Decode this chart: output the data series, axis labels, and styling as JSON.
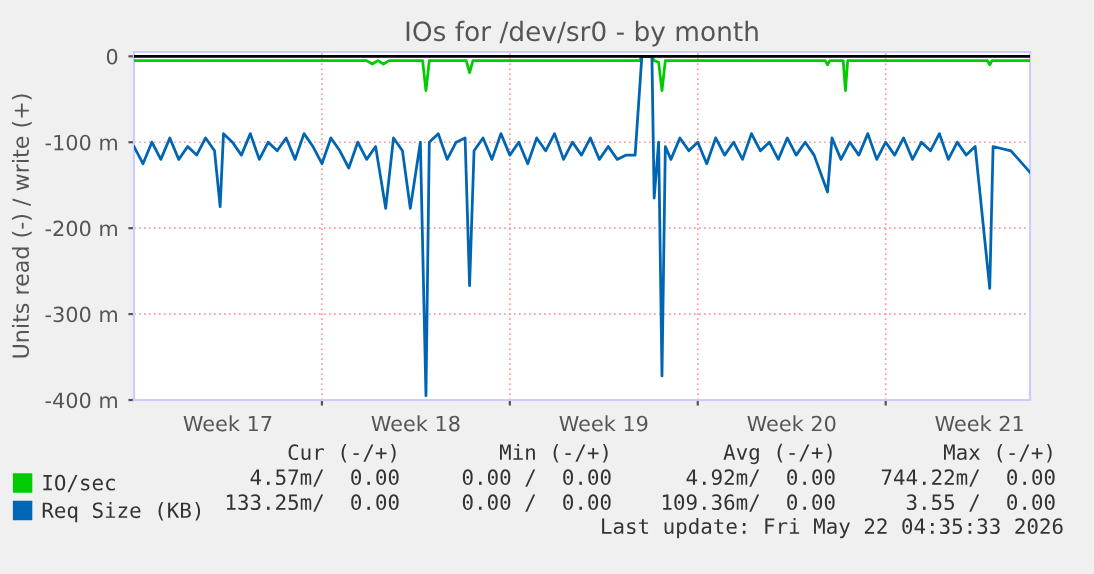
{
  "chart_data": {
    "type": "line",
    "title": "IOs for /dev/sr0 - by month",
    "ylabel": "Units read (-) / write (+)",
    "xlim": [
      "2026-04-20T00:00",
      "2026-05-23T09:00"
    ],
    "xticks": [
      {
        "value": "2026-04-23T12:00",
        "label": "Week 17"
      },
      {
        "value": "2026-04-27",
        "label": null
      },
      {
        "value": "2026-04-30T12:00",
        "label": "Week 18"
      },
      {
        "value": "2026-05-04",
        "label": null
      },
      {
        "value": "2026-05-07T12:00",
        "label": "Week 19"
      },
      {
        "value": "2026-05-11",
        "label": null
      },
      {
        "value": "2026-05-14T12:00",
        "label": "Week 20"
      },
      {
        "value": "2026-05-18",
        "label": null
      },
      {
        "value": "2026-05-21T12:00",
        "label": "Week 21"
      }
    ],
    "ylim": [
      -400,
      5
    ],
    "yticks": [
      {
        "value": -400,
        "label": "-400 m"
      },
      {
        "value": -300,
        "label": "-300 m"
      },
      {
        "value": -200,
        "label": "-200 m"
      },
      {
        "value": -100,
        "label": "-100 m"
      },
      0
    ],
    "grid": true,
    "legend": "bottom",
    "marker": "none",
    "line_style": "solid",
    "ref_lines": [
      {
        "axis": "y",
        "value": 0,
        "color": "#000000"
      }
    ],
    "series": [
      {
        "name": "IO/sec",
        "color": "#00cc00",
        "x": [
          "2026-04-20T00:00",
          "2026-04-28T16:00",
          "2026-04-28T21:00",
          "2026-04-29T02:00",
          "2026-04-29T07:00",
          "2026-04-29T12:00",
          "2026-04-30T18:00",
          "2026-04-30T21:00",
          "2026-05-01T00:00",
          "2026-05-02T09:00",
          "2026-05-02T12:00",
          "2026-05-02T15:00",
          "2026-05-08T20:00",
          "2026-05-08T22:00",
          "2026-05-09T07:00",
          "2026-05-09T09:00",
          "2026-05-09T13:00",
          "2026-05-09T16:00",
          "2026-05-09T19:00",
          "2026-05-15T18:00",
          "2026-05-15T20:00",
          "2026-05-15T22:00",
          "2026-05-16T10:00",
          "2026-05-16T12:00",
          "2026-05-16T14:00",
          "2026-05-21T19:00",
          "2026-05-21T21:00",
          "2026-05-21T23:00",
          "2026-05-23T09:00"
        ],
        "values": [
          -5,
          -5,
          -9,
          -5,
          -9,
          -5,
          -5,
          -40,
          -5,
          -5,
          -19,
          -5,
          -5,
          0,
          0,
          -5,
          -7,
          -40,
          -5,
          -5,
          -10,
          -5,
          -5,
          -40,
          -5,
          -5,
          -10,
          -5,
          -5
        ]
      },
      {
        "name": "Req Size (KB)",
        "color": "#0066b3",
        "x": [
          "2026-04-20T00:00",
          "2026-04-20T08:00",
          "2026-04-20T16:00",
          "2026-04-21T00:00",
          "2026-04-21T08:00",
          "2026-04-21T16:00",
          "2026-04-22T00:00",
          "2026-04-22T08:00",
          "2026-04-22T16:00",
          "2026-04-23T00:00",
          "2026-04-23T05:00",
          "2026-04-23T08:00",
          "2026-04-23T16:00",
          "2026-04-24T00:00",
          "2026-04-24T08:00",
          "2026-04-24T16:00",
          "2026-04-25T00:00",
          "2026-04-25T08:00",
          "2026-04-25T16:00",
          "2026-04-26T00:00",
          "2026-04-26T08:00",
          "2026-04-26T16:00",
          "2026-04-27T00:00",
          "2026-04-27T08:00",
          "2026-04-27T16:00",
          "2026-04-28T00:00",
          "2026-04-28T08:00",
          "2026-04-28T16:00",
          "2026-04-29T00:00",
          "2026-04-29T09:00",
          "2026-04-29T16:00",
          "2026-04-30T00:00",
          "2026-04-30T07:00",
          "2026-04-30T16:00",
          "2026-04-30T21:00",
          "2026-05-01T00:00",
          "2026-05-01T08:00",
          "2026-05-01T16:00",
          "2026-05-02T00:00",
          "2026-05-02T08:00",
          "2026-05-02T12:00",
          "2026-05-02T16:00",
          "2026-05-03T00:00",
          "2026-05-03T08:00",
          "2026-05-03T16:00",
          "2026-05-04T00:00",
          "2026-05-04T08:00",
          "2026-05-04T16:00",
          "2026-05-05T00:00",
          "2026-05-05T08:00",
          "2026-05-05T16:00",
          "2026-05-06T00:00",
          "2026-05-06T08:00",
          "2026-05-06T16:00",
          "2026-05-07T00:00",
          "2026-05-07T08:00",
          "2026-05-07T16:00",
          "2026-05-08T00:00",
          "2026-05-08T08:00",
          "2026-05-08T16:00",
          "2026-05-08T22:00",
          "2026-05-09T07:00",
          "2026-05-09T09:00",
          "2026-05-09T13:00",
          "2026-05-09T16:00",
          "2026-05-09T19:00",
          "2026-05-10T00:00",
          "2026-05-10T08:00",
          "2026-05-10T16:00",
          "2026-05-11T00:00",
          "2026-05-11T08:00",
          "2026-05-11T16:00",
          "2026-05-12T00:00",
          "2026-05-12T08:00",
          "2026-05-12T16:00",
          "2026-05-13T00:00",
          "2026-05-13T08:00",
          "2026-05-13T16:00",
          "2026-05-14T00:00",
          "2026-05-14T08:00",
          "2026-05-14T16:00",
          "2026-05-15T00:00",
          "2026-05-15T08:00",
          "2026-05-15T20:00",
          "2026-05-16T00:00",
          "2026-05-16T08:00",
          "2026-05-16T16:00",
          "2026-05-17T00:00",
          "2026-05-17T08:00",
          "2026-05-17T16:00",
          "2026-05-18T00:00",
          "2026-05-18T08:00",
          "2026-05-18T16:00",
          "2026-05-19T00:00",
          "2026-05-19T08:00",
          "2026-05-19T16:00",
          "2026-05-20T00:00",
          "2026-05-20T08:00",
          "2026-05-20T16:00",
          "2026-05-21T00:00",
          "2026-05-21T08:00",
          "2026-05-21T21:00",
          "2026-05-22T00:00",
          "2026-05-22T16:00",
          "2026-05-23T09:00"
        ],
        "values": [
          -105,
          -125,
          -100,
          -120,
          -95,
          -120,
          -105,
          -115,
          -95,
          -110,
          -175,
          -90,
          -100,
          -115,
          -90,
          -120,
          -100,
          -110,
          -95,
          -120,
          -90,
          -105,
          -125,
          -95,
          -110,
          -130,
          -100,
          -120,
          -105,
          -177,
          -95,
          -110,
          -177,
          -100,
          -395,
          -100,
          -90,
          -120,
          -100,
          -95,
          -267,
          -110,
          -95,
          -120,
          -90,
          -115,
          -100,
          -125,
          -95,
          -110,
          -90,
          -120,
          -100,
          -115,
          -95,
          -120,
          -105,
          -120,
          -115,
          -115,
          0,
          0,
          -165,
          -100,
          -372,
          -105,
          -120,
          -95,
          -110,
          -100,
          -125,
          -95,
          -115,
          -100,
          -120,
          -90,
          -110,
          -100,
          -120,
          -95,
          -115,
          -100,
          -115,
          -158,
          -95,
          -120,
          -100,
          -115,
          -90,
          -120,
          -100,
          -115,
          -95,
          -120,
          -100,
          -110,
          -90,
          -120,
          -100,
          -115,
          -105,
          -270,
          -105,
          -110,
          -135
        ]
      }
    ],
    "annotations": [
      "Cur (-/+)",
      "Min (-/+)",
      "Avg (-/+)",
      "Max (-/+)",
      "4.57m/  0.00",
      "0.00 /  0.00",
      "4.92m/  0.00",
      "744.22m/  0.00",
      "133.25m/  0.00",
      "0.00 /  0.00",
      "109.36m/  0.00",
      "3.55 /  0.00",
      "Last update: Fri May 22 04:35:33 2026"
    ]
  }
}
